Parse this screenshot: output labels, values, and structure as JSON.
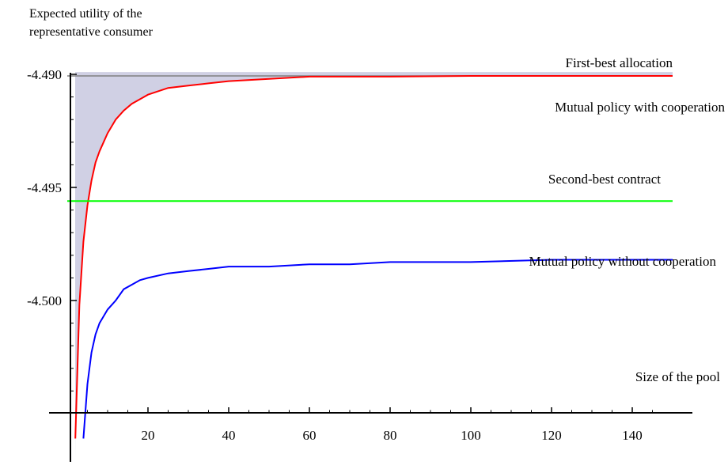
{
  "chart_data": {
    "type": "line",
    "title": "",
    "ylabel_lines": [
      "Expected utility of the",
      "representative consumer"
    ],
    "xlabel": "Size of the pool",
    "xlim": [
      0,
      150
    ],
    "ylim": [
      -4.5055,
      -4.4895
    ],
    "x_ticks": [
      20,
      40,
      60,
      80,
      100,
      120,
      140
    ],
    "x_tick_labels": [
      "20",
      "40",
      "60",
      "80",
      "100",
      "120",
      "140"
    ],
    "y_ticks": [
      -4.49,
      -4.495,
      -4.5
    ],
    "y_tick_labels": [
      "-4.490",
      "-4.495",
      "-4.500"
    ],
    "grid": false,
    "series": [
      {
        "name": "First-best allocation",
        "color": "#808080",
        "x": [
          0,
          150
        ],
        "y": [
          -4.4899,
          -4.4899
        ]
      },
      {
        "name": "Mutual policy with cooperation",
        "color": "#ff0000",
        "x": [
          2,
          3,
          4,
          5,
          6,
          7,
          8,
          9,
          10,
          12,
          14,
          16,
          18,
          20,
          25,
          30,
          35,
          40,
          50,
          60,
          70,
          80,
          100,
          120,
          140,
          150
        ],
        "y": [
          -4.5061,
          -4.5002,
          -4.4974,
          -4.4958,
          -4.4947,
          -4.4939,
          -4.4934,
          -4.493,
          -4.4926,
          -4.492,
          -4.4916,
          -4.4913,
          -4.4911,
          -4.4909,
          -4.4906,
          -4.4905,
          -4.4904,
          -4.4903,
          -4.4902,
          -4.4901,
          -4.4901,
          -4.4901,
          -4.49,
          -4.49,
          -4.49,
          -4.49
        ]
      },
      {
        "name": "Second-best contract",
        "color": "#00ff00",
        "x": [
          0,
          150
        ],
        "y": [
          -4.4956,
          -4.4956
        ]
      },
      {
        "name": "Mutual policy without cooperation",
        "color": "#0000ff",
        "x": [
          4,
          5,
          6,
          7,
          8,
          10,
          12,
          14,
          16,
          18,
          20,
          25,
          30,
          35,
          40,
          50,
          60,
          70,
          80,
          100,
          120,
          140,
          150
        ],
        "y": [
          -4.5061,
          -4.5037,
          -4.5023,
          -4.5015,
          -4.501,
          -4.5004,
          -4.5,
          -4.4995,
          -4.4993,
          -4.4991,
          -4.499,
          -4.4988,
          -4.4987,
          -4.4986,
          -4.4985,
          -4.4985,
          -4.4984,
          -4.4984,
          -4.4983,
          -4.4983,
          -4.4982,
          -4.4982,
          -4.4982
        ]
      }
    ],
    "shaded_region": {
      "color": "#d0d0e4",
      "description_series": [
        "First-best allocation",
        "Mutual policy with cooperation"
      ]
    }
  }
}
